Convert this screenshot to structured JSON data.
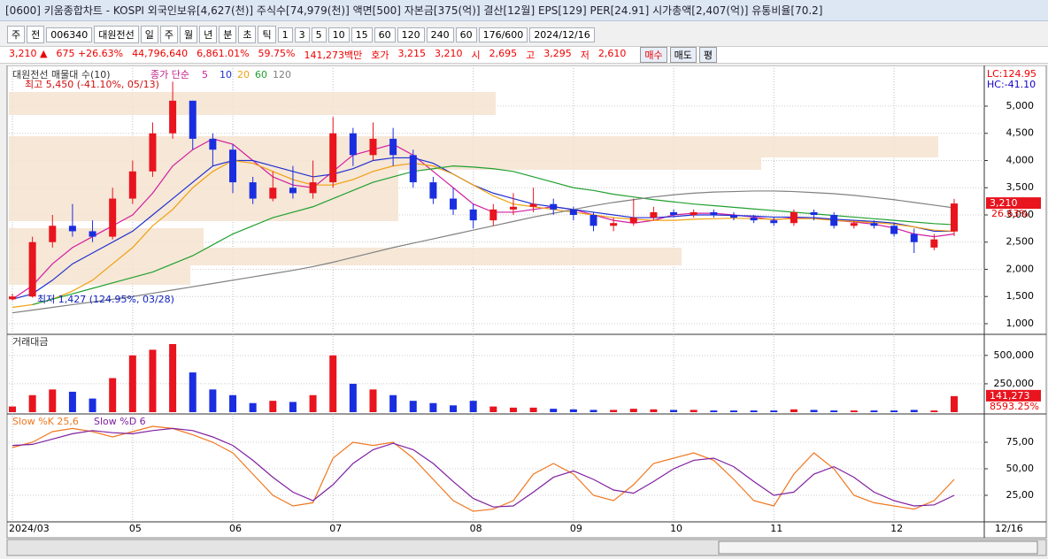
{
  "window": {
    "title": "[0600] 키움종합차트 - KOSPI 외국인보유[4,627(천)] 주식수[74,979(천)] 액면[500] 자본금[375(억)] 결산[12월] EPS[129] PER[24.91] 시가총액[2,407(억)] 유통비율[70.2]",
    "toolbar": [
      "주",
      "전",
      "006340",
      "대원전선",
      "일",
      "주",
      "월",
      "년",
      "분",
      "초",
      "틱",
      "1",
      "3",
      "5",
      "10",
      "15",
      "60",
      "120",
      "240",
      "60",
      "176/600",
      "2024/12/16"
    ],
    "info": [
      "3,210 ▲",
      "675 +26.63%",
      "44,796,640",
      "6,861.01%",
      "59.75%",
      "141,273백만",
      "호가",
      "3,215",
      "3,210",
      "시",
      "2,695",
      "고",
      "3,295",
      "저",
      "2,610"
    ],
    "buttons": [
      "매수",
      "매도",
      "평"
    ]
  },
  "chart_data": [
    {
      "type": "candlestick",
      "title": "대원전선 매물대 수(10)",
      "ma_label": "종가 단순",
      "annotations": [
        "최고 5,450 (-41.10%, 05/13)",
        "최저 1,427 (124.95%, 03/28)",
        "LC:124.95",
        "HC:-41.10"
      ],
      "last_price_label": "3,210",
      "last_change_label": "26.63%",
      "categories": [
        "2024/03",
        null,
        null,
        null,
        null,
        null,
        "05",
        null,
        null,
        null,
        null,
        "06",
        null,
        null,
        null,
        null,
        "07",
        null,
        null,
        null,
        null,
        null,
        null,
        "08",
        null,
        null,
        null,
        null,
        "09",
        null,
        null,
        null,
        null,
        "10",
        null,
        null,
        null,
        null,
        "11",
        null,
        null,
        null,
        null,
        null,
        "12",
        null,
        null,
        null
      ],
      "x_end_label": "12/16",
      "up_color": "#e8141e",
      "down_color": "#1a2ee0",
      "open": [
        1450,
        1500,
        2500,
        2800,
        2700,
        2600,
        3300,
        3800,
        4500,
        5100,
        4400,
        4200,
        3600,
        3300,
        3500,
        3400,
        3600,
        4500,
        4100,
        4400,
        4100,
        3600,
        3300,
        3100,
        2900,
        3100,
        3150,
        3200,
        3100,
        3000,
        2800,
        2850,
        2950,
        3050,
        3000,
        3050,
        3000,
        2950,
        2900,
        2850,
        3050,
        3000,
        2800,
        2850,
        2800,
        2650,
        2400,
        2695
      ],
      "high": [
        1550,
        2600,
        3000,
        3200,
        2900,
        3500,
        4000,
        4700,
        5450,
        5100,
        4500,
        4300,
        3700,
        3800,
        3900,
        4000,
        4800,
        4600,
        4700,
        4600,
        4200,
        3700,
        3500,
        3200,
        3200,
        3400,
        3500,
        3300,
        3150,
        3050,
        2950,
        3300,
        3150,
        3100,
        3100,
        3100,
        3050,
        3000,
        2950,
        3100,
        3100,
        3050,
        2900,
        2900,
        2850,
        2750,
        2650,
        3295
      ],
      "low": [
        1427,
        1480,
        2400,
        2600,
        2500,
        2550,
        3200,
        3700,
        4400,
        4200,
        3900,
        3400,
        3200,
        3250,
        3300,
        3300,
        3500,
        3900,
        4000,
        3900,
        3500,
        3200,
        3000,
        2750,
        2800,
        3000,
        3050,
        3000,
        2900,
        2700,
        2700,
        2800,
        2900,
        2950,
        2950,
        2950,
        2900,
        2850,
        2800,
        2800,
        2900,
        2750,
        2750,
        2750,
        2600,
        2300,
        2350,
        2610
      ],
      "close": [
        1500,
        2500,
        2800,
        2700,
        2600,
        3300,
        3800,
        4500,
        5100,
        4400,
        4200,
        3600,
        3300,
        3500,
        3400,
        3600,
        4500,
        4100,
        4400,
        4100,
        3600,
        3300,
        3100,
        2900,
        3100,
        3150,
        3200,
        3100,
        3000,
        2800,
        2850,
        2950,
        3050,
        3000,
        3050,
        3000,
        2950,
        2900,
        2850,
        3050,
        3000,
        2800,
        2850,
        2800,
        2650,
        2500,
        2550,
        3210
      ],
      "series": [
        {
          "name": "5",
          "color": "#d21ea0",
          "values": [
            1450,
            1700,
            2100,
            2400,
            2600,
            2800,
            3000,
            3400,
            3900,
            4200,
            4400,
            4300,
            4000,
            3700,
            3550,
            3500,
            3800,
            4100,
            4200,
            4300,
            4100,
            3800,
            3500,
            3200,
            3050,
            3050,
            3100,
            3150,
            3100,
            3000,
            2900,
            2850,
            2900,
            3000,
            3030,
            3030,
            3000,
            2960,
            2910,
            2950,
            2950,
            2900,
            2870,
            2830,
            2760,
            2650,
            2600,
            2650
          ]
        },
        {
          "name": "10",
          "color": "#2030d0",
          "values": [
            1450,
            1550,
            1800,
            2100,
            2300,
            2500,
            2700,
            3000,
            3300,
            3600,
            3900,
            4000,
            4000,
            3900,
            3800,
            3700,
            3750,
            3850,
            4000,
            4050,
            4050,
            3950,
            3750,
            3550,
            3400,
            3300,
            3200,
            3150,
            3100,
            3050,
            3000,
            2950,
            2950,
            2970,
            3000,
            3000,
            2990,
            2980,
            2960,
            2960,
            2950,
            2920,
            2900,
            2880,
            2850,
            2780,
            2700,
            2700
          ]
        },
        {
          "name": "20",
          "color": "#f0a010",
          "values": [
            1300,
            1350,
            1450,
            1600,
            1800,
            2100,
            2400,
            2800,
            3100,
            3500,
            3800,
            4000,
            3950,
            3800,
            3650,
            3550,
            3550,
            3650,
            3800,
            3900,
            3950,
            3900,
            3750,
            3550,
            3350,
            3200,
            3150,
            3100,
            3050,
            3000,
            2950,
            2920,
            2900,
            2900,
            2920,
            2930,
            2940,
            2930,
            2920,
            2930,
            2930,
            2900,
            2880,
            2860,
            2830,
            2780,
            2720,
            2700
          ]
        },
        {
          "name": "60",
          "color": "#20a030",
          "values": [
            null,
            1350,
            1450,
            1550,
            1650,
            1750,
            1850,
            1950,
            2100,
            2250,
            2450,
            2650,
            2800,
            2950,
            3050,
            3150,
            3300,
            3450,
            3600,
            3700,
            3800,
            3850,
            3900,
            3880,
            3850,
            3800,
            3700,
            3600,
            3500,
            3450,
            3380,
            3330,
            3280,
            3240,
            3200,
            3170,
            3140,
            3110,
            3080,
            3050,
            3020,
            2990,
            2960,
            2930,
            2900,
            2870,
            2840,
            2820
          ]
        },
        {
          "name": "120",
          "color": "#808080",
          "values": [
            1200,
            1250,
            1300,
            1350,
            1400,
            1450,
            1500,
            1560,
            1620,
            1680,
            1740,
            1800,
            1860,
            1920,
            1980,
            2050,
            2130,
            2220,
            2310,
            2400,
            2480,
            2560,
            2640,
            2720,
            2800,
            2880,
            2960,
            3030,
            3100,
            3170,
            3230,
            3280,
            3330,
            3370,
            3400,
            3420,
            3430,
            3440,
            3440,
            3430,
            3410,
            3390,
            3360,
            3320,
            3280,
            3230,
            3180,
            3130
          ]
        }
      ],
      "ylim": [
        837,
        5683
      ],
      "yticks": [
        {
          "value": 1000,
          "label": "1,000"
        },
        {
          "value": 1500,
          "label": "1,500"
        },
        {
          "value": 2000,
          "label": "2,000"
        },
        {
          "value": 2500,
          "label": "2,500"
        },
        {
          "value": 3000,
          "label": "3,000"
        },
        {
          "value": 3500,
          "label": "3,500"
        },
        {
          "value": 4000,
          "label": "4,000"
        },
        {
          "value": 4500,
          "label": "4,500"
        },
        {
          "value": 5000,
          "label": "5,000"
        }
      ],
      "grid": true
    },
    {
      "type": "bar",
      "title": "거래대금",
      "last_value_label": "141,273",
      "last_ratio_label": "8593.25%",
      "values": [
        50000,
        150000,
        200000,
        180000,
        120000,
        300000,
        500000,
        550000,
        600000,
        350000,
        200000,
        150000,
        80000,
        100000,
        90000,
        150000,
        500000,
        250000,
        200000,
        150000,
        100000,
        80000,
        60000,
        100000,
        50000,
        40000,
        40000,
        30000,
        25000,
        20000,
        20000,
        30000,
        25000,
        20000,
        20000,
        15000,
        15000,
        15000,
        15000,
        25000,
        20000,
        15000,
        15000,
        15000,
        15000,
        20000,
        15000,
        141273
      ],
      "ylim": [
        0,
        670000
      ],
      "yticks": [
        {
          "value": 250000,
          "label": "250,000"
        },
        {
          "value": 500000,
          "label": "500,000"
        }
      ],
      "grid": true
    },
    {
      "type": "line",
      "series": [
        {
          "name": "Slow %K 25,6",
          "color": "#f07820",
          "values": [
            70,
            75,
            85,
            88,
            85,
            80,
            85,
            90,
            88,
            82,
            75,
            65,
            45,
            25,
            15,
            18,
            60,
            75,
            72,
            75,
            60,
            40,
            20,
            10,
            12,
            20,
            45,
            55,
            45,
            25,
            20,
            35,
            55,
            60,
            65,
            58,
            40,
            20,
            15,
            45,
            65,
            50,
            25,
            18,
            15,
            12,
            20,
            40
          ]
        },
        {
          "name": "Slow %D 6",
          "color": "#8020a0",
          "values": [
            72,
            73,
            78,
            83,
            86,
            84,
            83,
            86,
            88,
            86,
            80,
            72,
            58,
            42,
            28,
            20,
            35,
            55,
            68,
            74,
            68,
            55,
            38,
            22,
            14,
            15,
            28,
            42,
            48,
            40,
            30,
            27,
            38,
            50,
            58,
            60,
            52,
            38,
            25,
            28,
            45,
            52,
            42,
            28,
            20,
            15,
            16,
            25
          ]
        }
      ],
      "ylim": [
        0,
        100
      ],
      "yticks": [
        {
          "value": 25,
          "label": "25,00"
        },
        {
          "value": 50,
          "label": "50,00"
        },
        {
          "value": 75,
          "label": "75,00"
        }
      ],
      "grid": true
    }
  ]
}
